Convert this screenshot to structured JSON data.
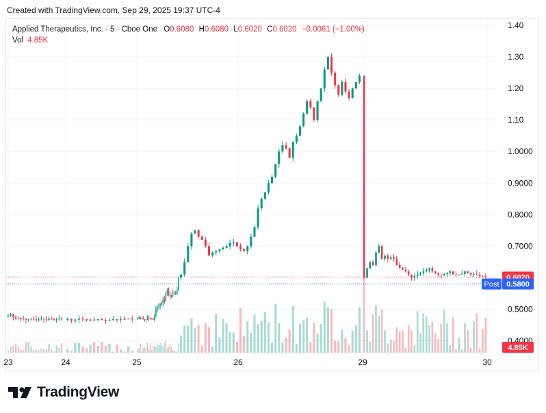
{
  "header": {
    "created_text": "Created with TradingView.com, Sep 29, 2025 19:37 UTC-4"
  },
  "legend": {
    "symbol": "Applied Therapeutics, Inc. · 5 · Cboe One",
    "o_label": "O",
    "o_value": "0.6080",
    "h_label": "H",
    "h_value": "0.6080",
    "l_label": "L",
    "l_value": "0.6020",
    "c_label": "C",
    "c_value": "0.6020",
    "change": "−0.0061 (−1.00%)",
    "vol_label": "Vol",
    "vol_value": "4.85K"
  },
  "brand": {
    "name": "TradingView"
  },
  "colors": {
    "up": "#089981",
    "down": "#f23645",
    "last_price_bg": "#f23645",
    "post_bg": "#2962ff",
    "grid": "#f0f3fa"
  },
  "chart_data": {
    "type": "candlestick",
    "interval": "5",
    "x_ticks": [
      "23",
      "24",
      "25",
      "26",
      "29",
      "30"
    ],
    "y_ticks": [
      "1.40",
      "1.30",
      "1.20",
      "1.10",
      "1.0000",
      "0.9000",
      "0.8000",
      "0.7000",
      "0.5000",
      "0.4000"
    ],
    "y_range": [
      0.4,
      1.4
    ],
    "last_price": {
      "value": 0.602,
      "label": "0.6020"
    },
    "post_price": {
      "value": 0.58,
      "label": "0.5800",
      "tag": "Post"
    },
    "volume_label": "4.85K",
    "sessions": [
      {
        "day": "23",
        "path": [
          0.48,
          0.485,
          0.475,
          0.47,
          0.468,
          0.472,
          0.47,
          0.466,
          0.468,
          0.47,
          0.468,
          0.465,
          0.468,
          0.47,
          0.468,
          0.466,
          0.47,
          0.468,
          0.465,
          0.468,
          0.47,
          0.468
        ]
      },
      {
        "day": "24",
        "path": [
          0.468,
          0.464,
          0.467,
          0.47,
          0.468,
          0.465,
          0.467,
          0.466,
          0.468,
          0.466,
          0.464,
          0.466,
          0.468,
          0.467,
          0.469,
          0.468,
          0.47,
          0.469
        ]
      },
      {
        "day": "25",
        "path": [
          0.469,
          0.474,
          0.47,
          0.472,
          0.468,
          0.466,
          0.47,
          0.472,
          0.47,
          0.468,
          0.47,
          0.466,
          0.48,
          0.5,
          0.51,
          0.512,
          0.515,
          0.52,
          0.53,
          0.525,
          0.55,
          0.56,
          0.55,
          0.54,
          0.545,
          0.55,
          0.548,
          0.552,
          0.56,
          0.6
        ]
      },
      {
        "day": "26",
        "path": [
          0.61,
          0.65,
          0.7,
          0.74,
          0.75,
          0.73,
          0.72,
          0.7,
          0.67,
          0.68,
          0.685,
          0.69,
          0.695,
          0.7,
          0.71,
          0.712,
          0.7,
          0.69,
          0.685,
          0.7,
          0.73,
          0.76,
          0.82,
          0.85,
          0.87,
          0.9,
          0.92,
          0.96,
          1.0,
          1.02,
          1.01,
          0.98,
          1.03,
          1.05,
          1.08,
          1.12,
          1.16,
          1.14,
          1.1,
          1.16,
          1.2,
          1.26,
          1.3,
          1.25,
          1.21,
          1.18,
          1.22,
          1.19,
          1.17,
          1.2,
          1.22,
          1.24
        ]
      },
      {
        "day": "29",
        "path": [
          0.6,
          0.63,
          0.65,
          0.64,
          0.68,
          0.7,
          0.66,
          0.67,
          0.66,
          0.665,
          0.66,
          0.64,
          0.63,
          0.625,
          0.62,
          0.61,
          0.6,
          0.605,
          0.61,
          0.615,
          0.62,
          0.625,
          0.63,
          0.62,
          0.615,
          0.61,
          0.608,
          0.612,
          0.615,
          0.62,
          0.61,
          0.608,
          0.61,
          0.612,
          0.62,
          0.615,
          0.61,
          0.612,
          0.61,
          0.606,
          0.604,
          0.602
        ]
      }
    ]
  }
}
